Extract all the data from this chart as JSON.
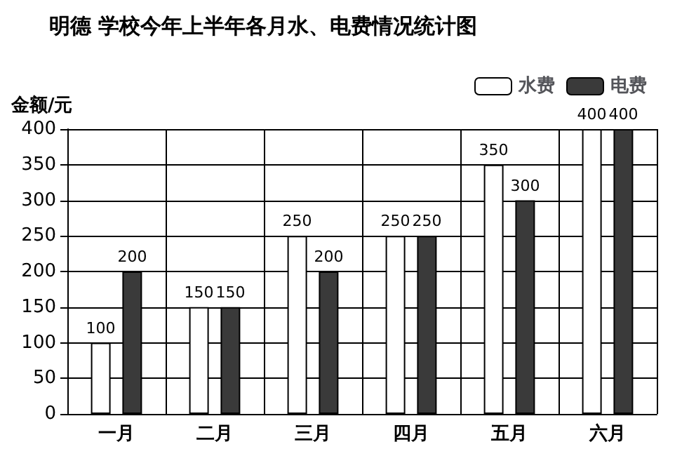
{
  "chart_data": {
    "type": "bar",
    "title": "明德 学校今年上半年各月水、电费情况统计图",
    "ylabel": "金额/元",
    "categories": [
      "一月",
      "二月",
      "三月",
      "四月",
      "五月",
      "六月"
    ],
    "series": [
      {
        "name": "水费",
        "color": "#ffffff",
        "values": [
          100,
          150,
          250,
          250,
          350,
          400
        ]
      },
      {
        "name": "电费",
        "color": "#3a3a3a",
        "values": [
          200,
          150,
          200,
          250,
          300,
          400
        ]
      }
    ],
    "ylim": [
      0,
      400
    ],
    "yticks": [
      0,
      50,
      100,
      150,
      200,
      250,
      300,
      350,
      400
    ],
    "grid": true,
    "legend": "top right",
    "data_labels": true
  }
}
